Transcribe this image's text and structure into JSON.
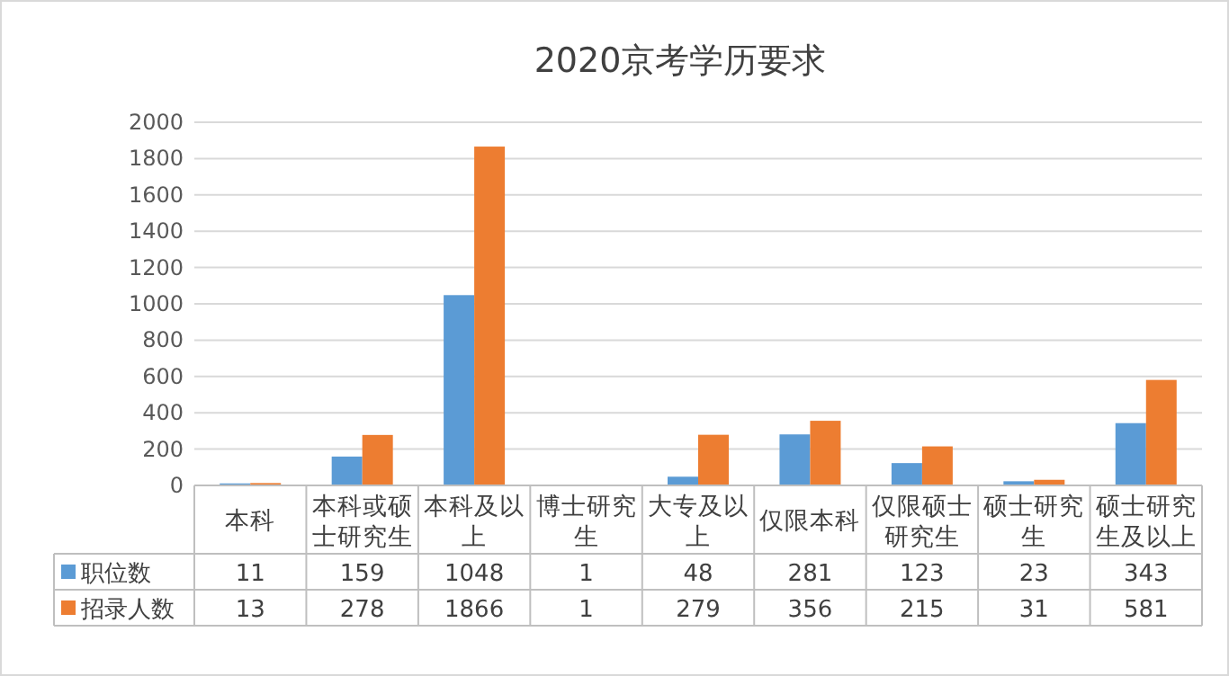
{
  "chart_data": {
    "type": "bar",
    "title": "2020京考学历要求",
    "categories": [
      "本科",
      "本科或硕士研究生",
      "本科及以上",
      "博士研究生",
      "大专及以上",
      "仅限本科",
      "仅限硕士研究生",
      "硕士研究生",
      "硕士研究生及以上"
    ],
    "series": [
      {
        "name": "职位数",
        "color": "#5b9bd5",
        "values": [
          11,
          159,
          1048,
          1,
          48,
          281,
          123,
          23,
          343
        ]
      },
      {
        "name": "招录人数",
        "color": "#ed7d31",
        "values": [
          13,
          278,
          1866,
          1,
          279,
          356,
          215,
          31,
          581
        ]
      }
    ],
    "ylim": [
      0,
      2000
    ],
    "yticks": [
      0,
      200,
      400,
      600,
      800,
      1000,
      1200,
      1400,
      1600,
      1800,
      2000
    ],
    "grid": "y",
    "legend": "bottom",
    "data_labels": true
  }
}
